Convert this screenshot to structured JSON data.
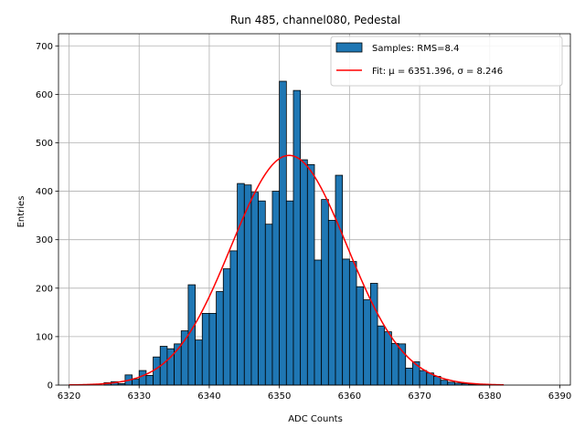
{
  "chart_data": {
    "type": "bar",
    "title": "Run 485, channel080, Pedestal",
    "xlabel": "ADC Counts",
    "ylabel": "Entries",
    "xlim": [
      6318.5,
      6391.5
    ],
    "ylim": [
      0,
      725
    ],
    "xticks": [
      6320,
      6330,
      6340,
      6350,
      6360,
      6370,
      6380,
      6390
    ],
    "yticks": [
      0,
      100,
      200,
      300,
      400,
      500,
      600,
      700
    ],
    "grid": true,
    "legend_position": "top-right",
    "bin_width": 1,
    "histogram": {
      "name": "Samples: RMS=8.4",
      "color": "#1f77b4",
      "bin_left_edges": [
        6325,
        6326,
        6327,
        6328,
        6329,
        6330,
        6331,
        6332,
        6333,
        6334,
        6335,
        6336,
        6337,
        6338,
        6339,
        6340,
        6341,
        6342,
        6343,
        6344,
        6345,
        6346,
        6347,
        6348,
        6349,
        6350,
        6351,
        6352,
        6353,
        6354,
        6355,
        6356,
        6357,
        6358,
        6359,
        6360,
        6361,
        6362,
        6363,
        6364,
        6365,
        6366,
        6367,
        6368,
        6369,
        6370,
        6371,
        6372,
        6373,
        6374,
        6375,
        6376,
        6377,
        6378,
        6379
      ],
      "values": [
        5,
        7,
        3,
        21,
        12,
        30,
        20,
        58,
        80,
        75,
        85,
        112,
        207,
        93,
        148,
        148,
        193,
        240,
        277,
        416,
        413,
        398,
        380,
        332,
        400,
        627,
        380,
        608,
        465,
        455,
        258,
        383,
        340,
        433,
        260,
        255,
        203,
        176,
        210,
        122,
        110,
        86,
        85,
        35,
        48,
        30,
        25,
        18,
        10,
        6,
        4,
        3,
        2,
        1,
        1
      ]
    },
    "fit": {
      "name": "Fit: μ = 6351.396, σ = 8.246",
      "color": "#ff0000",
      "mu": 6351.396,
      "sigma": 8.246,
      "amplitude": 474,
      "x_range": [
        6320,
        6382
      ]
    }
  }
}
